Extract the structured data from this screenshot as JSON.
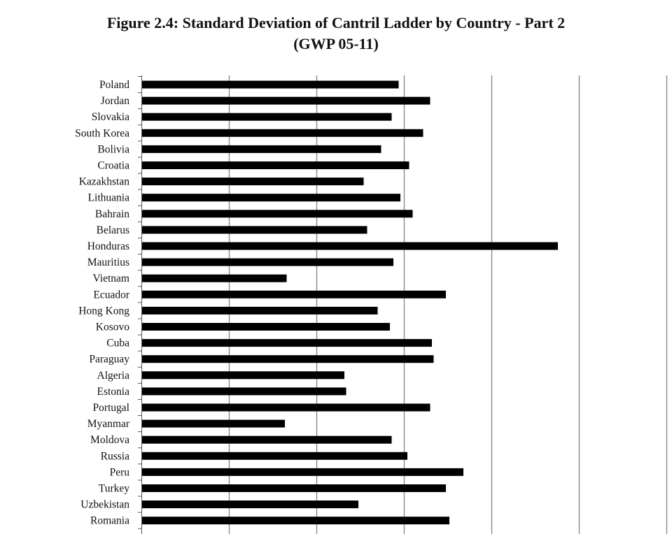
{
  "chart_data": {
    "type": "bar",
    "orientation": "horizontal",
    "title": "Figure 2.4: Standard Deviation of Cantril Ladder by Country - Part 2",
    "subtitle": "(GWP 05-11)",
    "xlabel": "",
    "ylabel": "",
    "xlim": [
      0,
      3.0
    ],
    "grid": true,
    "legend": "none",
    "bar_color": "#000000",
    "categories": [
      "Poland",
      "Jordan",
      "Slovakia",
      "South Korea",
      "Bolivia",
      "Croatia",
      "Kazakhstan",
      "Lithuania",
      "Bahrain",
      "Belarus",
      "Honduras",
      "Mauritius",
      "Vietnam",
      "Ecuador",
      "Hong Kong",
      "Kosovo",
      "Cuba",
      "Paraguay",
      "Algeria",
      "Estonia",
      "Portugal",
      "Myanmar",
      "Moldova",
      "Russia",
      "Peru",
      "Turkey",
      "Uzbekistan",
      "Romania"
    ],
    "values": [
      1.47,
      1.65,
      1.43,
      1.61,
      1.37,
      1.53,
      1.27,
      1.48,
      1.55,
      1.29,
      2.38,
      1.44,
      0.83,
      1.74,
      1.35,
      1.42,
      1.66,
      1.67,
      1.16,
      1.17,
      1.65,
      0.82,
      1.43,
      1.52,
      1.84,
      1.74,
      1.24,
      1.76
    ]
  }
}
